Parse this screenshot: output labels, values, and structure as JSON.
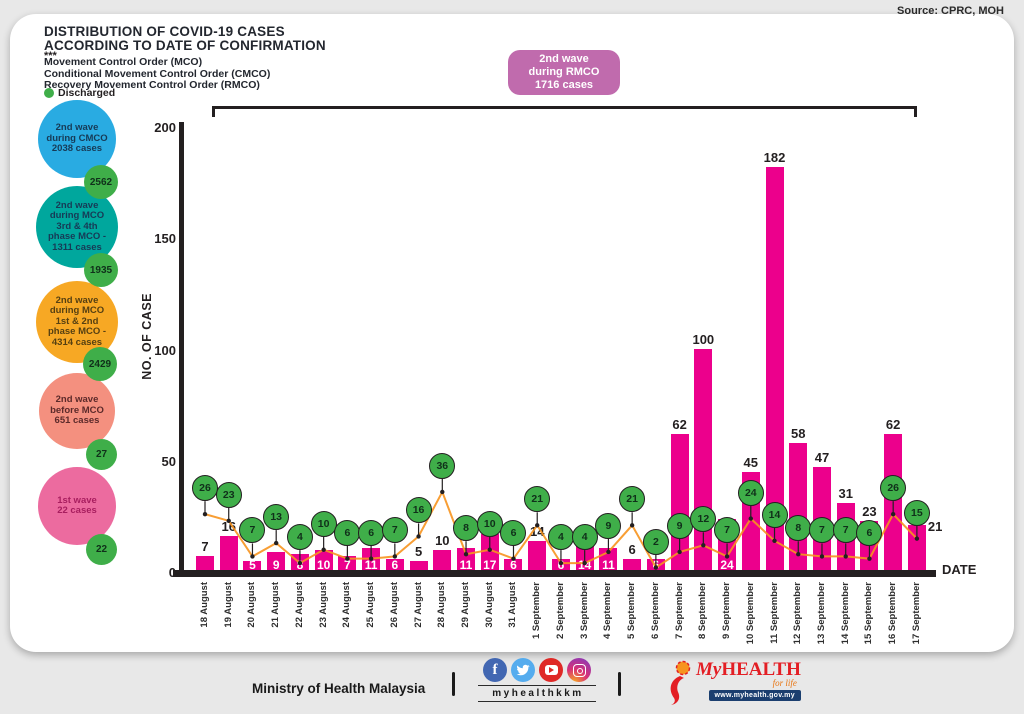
{
  "source_label": "Source: CPRC, MOH",
  "header": {
    "title_line1": "DISTRIBUTION OF COVID-19 CASES",
    "title_line2": "ACCORDING TO DATE OF CONFIRMATION",
    "stars": "***",
    "mco_lines": [
      "Movement Control Order (MCO)",
      "Conditional Movement Control Order (CMCO)",
      "Recovery Movement Control Order (RMCO)"
    ],
    "discharged_legend": "Discharged",
    "discharged_color": "#3fae49"
  },
  "wave_bubbles": [
    {
      "lines": [
        "2nd wave",
        "during CMCO",
        "2038 cases"
      ],
      "color": "#29abe2",
      "text_color": "#173a56",
      "discharged": "2562"
    },
    {
      "lines": [
        "2nd wave",
        "during MCO",
        "3rd & 4th",
        "phase MCO -",
        "1311 cases"
      ],
      "color": "#00a79d",
      "text_color": "#173a56",
      "discharged": "1935"
    },
    {
      "lines": [
        "2nd wave",
        "during MCO",
        "1st & 2nd",
        "phase MCO -",
        "4314 cases"
      ],
      "color": "#f7a824",
      "text_color": "#564012",
      "discharged": "2429"
    },
    {
      "lines": [
        "2nd wave",
        "before MCO",
        "651 cases"
      ],
      "color": "#f4907f",
      "text_color": "#5c2a2a",
      "discharged": "27"
    },
    {
      "lines": [
        "1st wave",
        "22 cases"
      ],
      "color": "#ec6b9f",
      "text_color": "#a81e5f",
      "discharged": "22"
    }
  ],
  "rmco_callout": {
    "lines": [
      "2nd wave",
      "during RMCO",
      "1716 cases"
    ],
    "color": "#c06bad"
  },
  "chart_data": {
    "type": "bar+line",
    "title": "DISTRIBUTION OF COVID-19 CASES ACCORDING TO DATE OF CONFIRMATION",
    "xlabel": "DATE",
    "ylabel": "NO. OF CASE",
    "ylim": [
      0,
      200
    ],
    "yticks": [
      0,
      50,
      100,
      150,
      200
    ],
    "grid": false,
    "legend_position": "none",
    "categories": [
      "18 August",
      "19 August",
      "20 August",
      "21 August",
      "22 August",
      "23 August",
      "24 August",
      "25 August",
      "26 August",
      "27 August",
      "28 August",
      "29 August",
      "30 August",
      "31 August",
      "1 September",
      "2 September",
      "3 September",
      "4 September",
      "5 September",
      "6 September",
      "7 September",
      "8 September",
      "9 September",
      "10 September",
      "11 September",
      "12 September",
      "13 September",
      "14 September",
      "15 September",
      "16 September",
      "17 September"
    ],
    "series": [
      {
        "name": "Confirmed cases",
        "type": "bar",
        "color": "#ec008c",
        "values": [
          7,
          16,
          5,
          9,
          8,
          10,
          7,
          11,
          6,
          5,
          10,
          11,
          17,
          6,
          14,
          6,
          14,
          11,
          6,
          6,
          62,
          100,
          24,
          45,
          182,
          58,
          47,
          31,
          23,
          62,
          21
        ]
      },
      {
        "name": "Discharged",
        "type": "line",
        "color": "#f7941e",
        "bubble_color": "#3fae49",
        "values": [
          26,
          23,
          7,
          13,
          4,
          10,
          6,
          6,
          7,
          16,
          36,
          8,
          10,
          6,
          21,
          4,
          4,
          9,
          21,
          2,
          9,
          12,
          7,
          24,
          14,
          8,
          7,
          7,
          6,
          26,
          15
        ]
      }
    ],
    "bar_label_positions": [
      "above",
      "above",
      "inside",
      "inside",
      "inside",
      "inside",
      "inside",
      "inside",
      "inside",
      "above",
      "above",
      "inside",
      "inside",
      "inside",
      "above",
      "inside",
      "inside",
      "inside",
      "above",
      "inside",
      "above",
      "above",
      "inside",
      "above",
      "above",
      "above",
      "above",
      "above",
      "above",
      "above",
      "right"
    ]
  },
  "footer": {
    "ministry": "Ministry of Health Malaysia",
    "social_handle": "myhealthkkm",
    "brand": {
      "name_prefix": "My",
      "name_suffix": "HEALTH",
      "tagline": "for life",
      "url": "www.myhealth.gov.my"
    }
  }
}
